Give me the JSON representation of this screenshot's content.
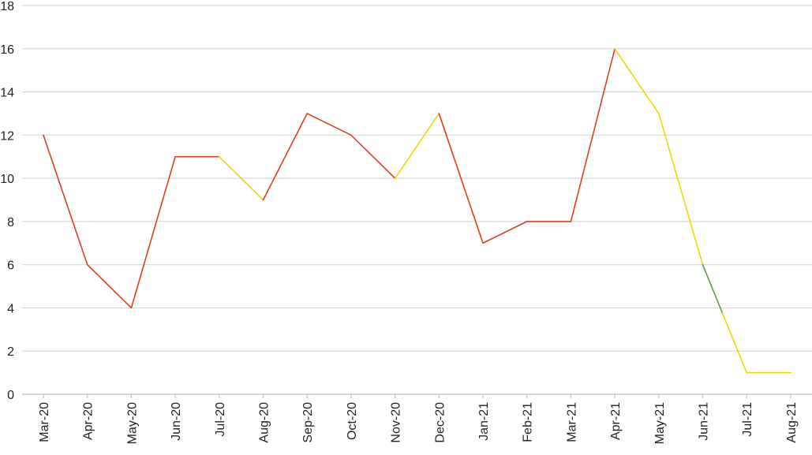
{
  "chart_data": {
    "type": "line",
    "title": "",
    "xlabel": "",
    "ylabel": "",
    "ylim": [
      0,
      18
    ],
    "yticks": [
      0,
      2,
      4,
      6,
      8,
      10,
      12,
      14,
      16,
      18
    ],
    "grid": true,
    "legend": "none",
    "categories": [
      "Mar-20",
      "Apr-20",
      "May-20",
      "Jun-20",
      "Jul-20",
      "Aug-20",
      "Sep-20",
      "Oct-20",
      "Nov-20",
      "Dec-20",
      "Jan-21",
      "Feb-21",
      "Mar-21",
      "Apr-21",
      "May-21",
      "Jun-21",
      "Jul-21",
      "Aug-21"
    ],
    "series": [
      {
        "values": [
          12,
          6,
          4,
          11,
          11,
          9,
          13,
          12,
          10,
          13,
          7,
          8,
          8,
          16,
          13,
          6,
          1,
          1
        ]
      }
    ],
    "segment_colors": [
      {
        "from_x": 0,
        "to_x": 4,
        "color": "#e03c1f"
      },
      {
        "from_x": 4,
        "to_x": 5,
        "color": "#f2d600"
      },
      {
        "from_x": 5,
        "to_x": 8,
        "color": "#e03c1f"
      },
      {
        "from_x": 8,
        "to_x": 9,
        "color": "#f2d600"
      },
      {
        "from_x": 9,
        "to_x": 13,
        "color": "#e03c1f"
      },
      {
        "from_x": 13,
        "to_x": 15,
        "color": "#f2d600"
      },
      {
        "from_x": 15,
        "to_x": 15.45,
        "color": "#5a9e3a"
      },
      {
        "from_x": 15.45,
        "to_x": 17,
        "color": "#f2d600"
      }
    ],
    "colors": {
      "red": "#e03c1f",
      "yellow": "#f2d600",
      "green": "#5a9e3a",
      "grid": "#d9d9d9"
    }
  }
}
